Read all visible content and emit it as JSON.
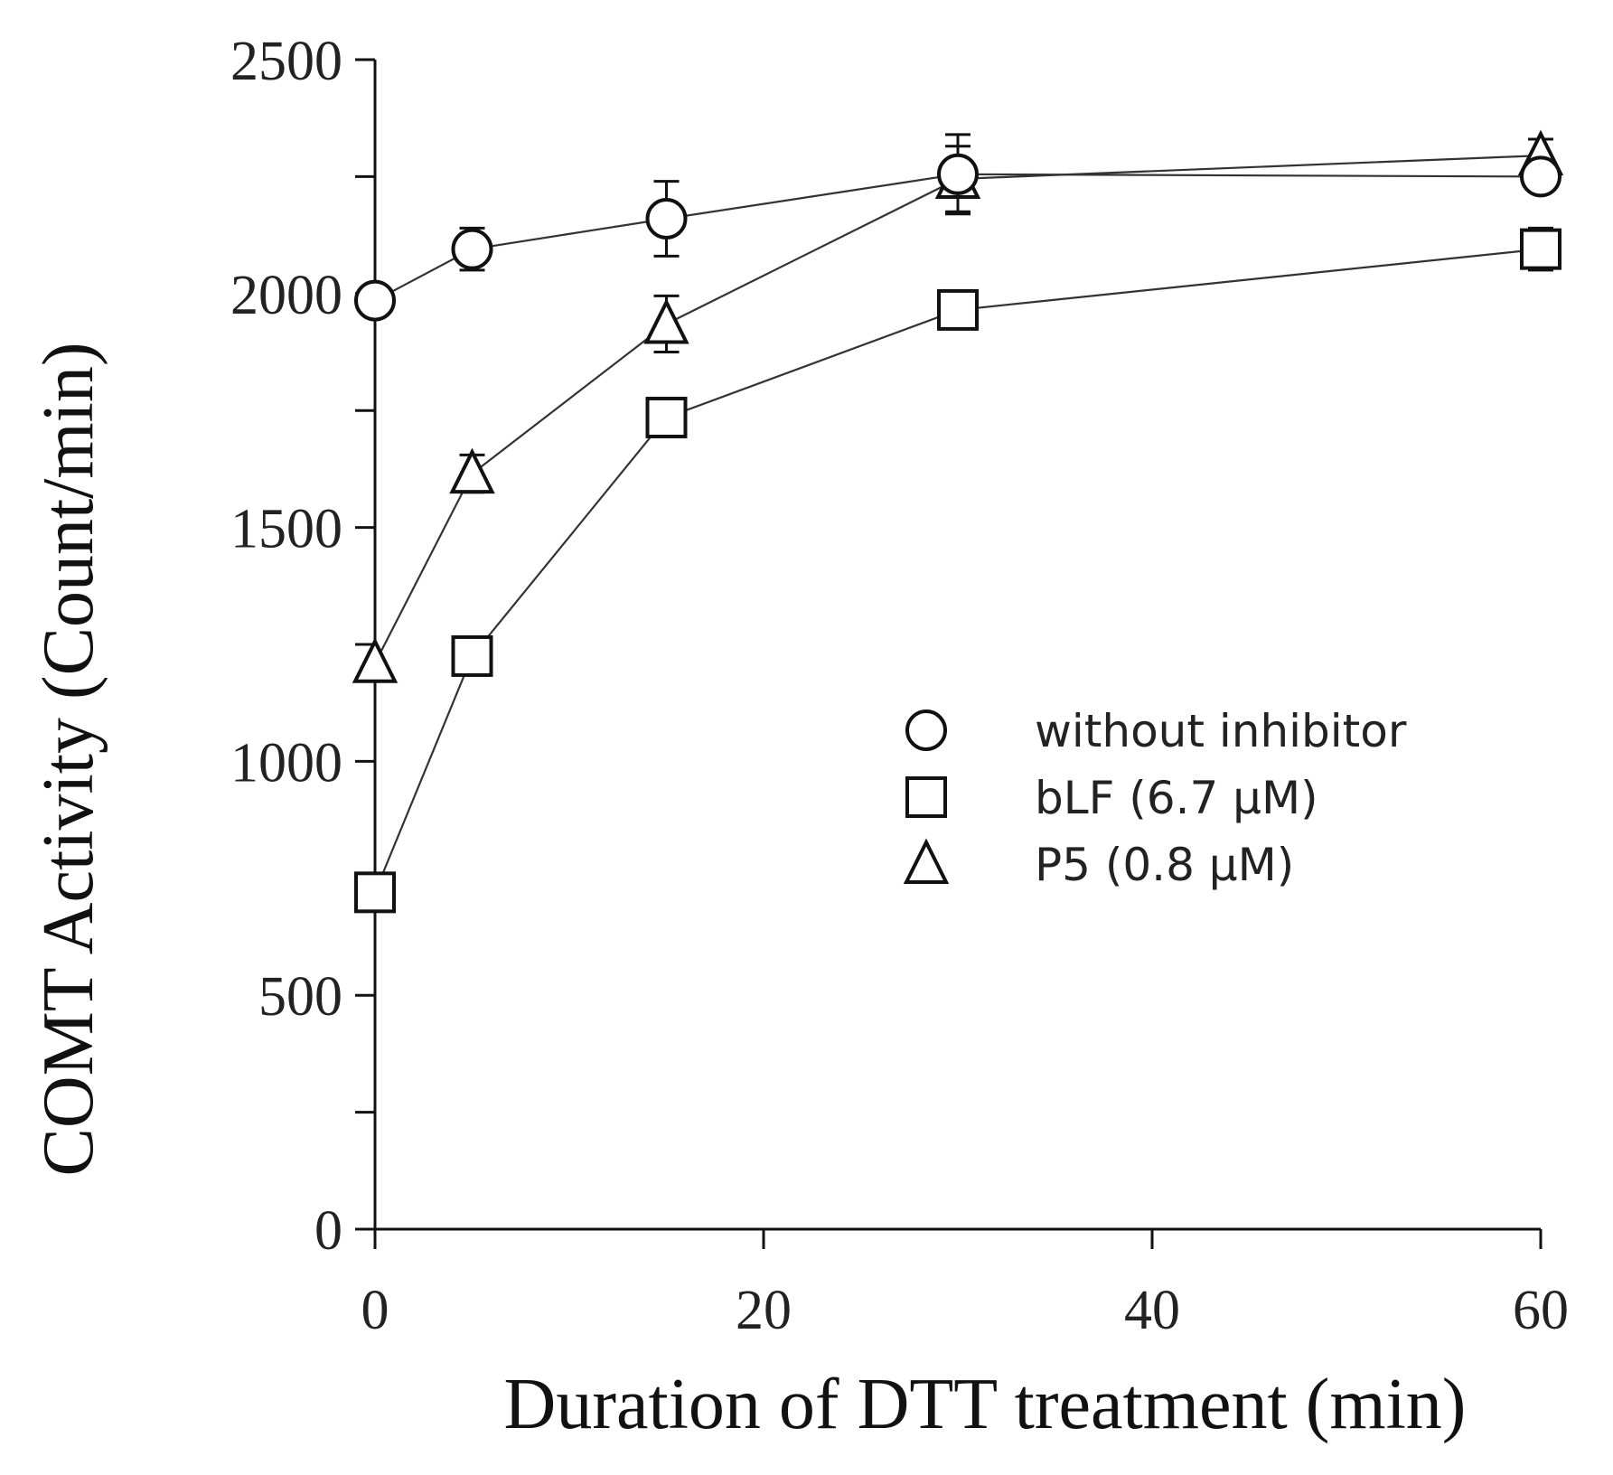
{
  "chart_data": {
    "type": "line",
    "title": "",
    "xlabel": "Duration of DTT  treatment (min)",
    "ylabel": "COMT Activity  (Count/min)",
    "xlim": [
      0,
      60
    ],
    "ylim": [
      0,
      2500
    ],
    "x_ticks": [
      0,
      20,
      40,
      60
    ],
    "x_tick_labels": [
      "0",
      "20",
      "40",
      "60"
    ],
    "y_ticks": [
      0,
      500,
      1000,
      1500,
      2000,
      2500
    ],
    "y_tick_labels": [
      "0",
      "500",
      "1000",
      "1500",
      "2000",
      "2500"
    ],
    "y_minor_ticks": [
      250,
      750,
      1250,
      1750,
      2250
    ],
    "grid": false,
    "legend_position": "center-right",
    "series": [
      {
        "name": "without inhibitor",
        "marker": "circle",
        "x": [
          0,
          5,
          15,
          30,
          60
        ],
        "values": [
          1985,
          2095,
          2160,
          2255,
          2250
        ],
        "errors": [
          0,
          45,
          80,
          85,
          0
        ]
      },
      {
        "name": "bLF (6.7 μM)",
        "marker": "square",
        "x": [
          0,
          5,
          15,
          30,
          60
        ],
        "values": [
          720,
          1225,
          1735,
          1965,
          2095
        ],
        "errors": [
          0,
          0,
          0,
          0,
          45
        ]
      },
      {
        "name": "P5 (0.8 μM)",
        "marker": "triangle",
        "x": [
          0,
          5,
          15,
          30,
          60
        ],
        "values": [
          1210,
          1615,
          1935,
          2245,
          2295
        ],
        "errors": [
          0,
          40,
          60,
          70,
          35
        ]
      }
    ]
  }
}
